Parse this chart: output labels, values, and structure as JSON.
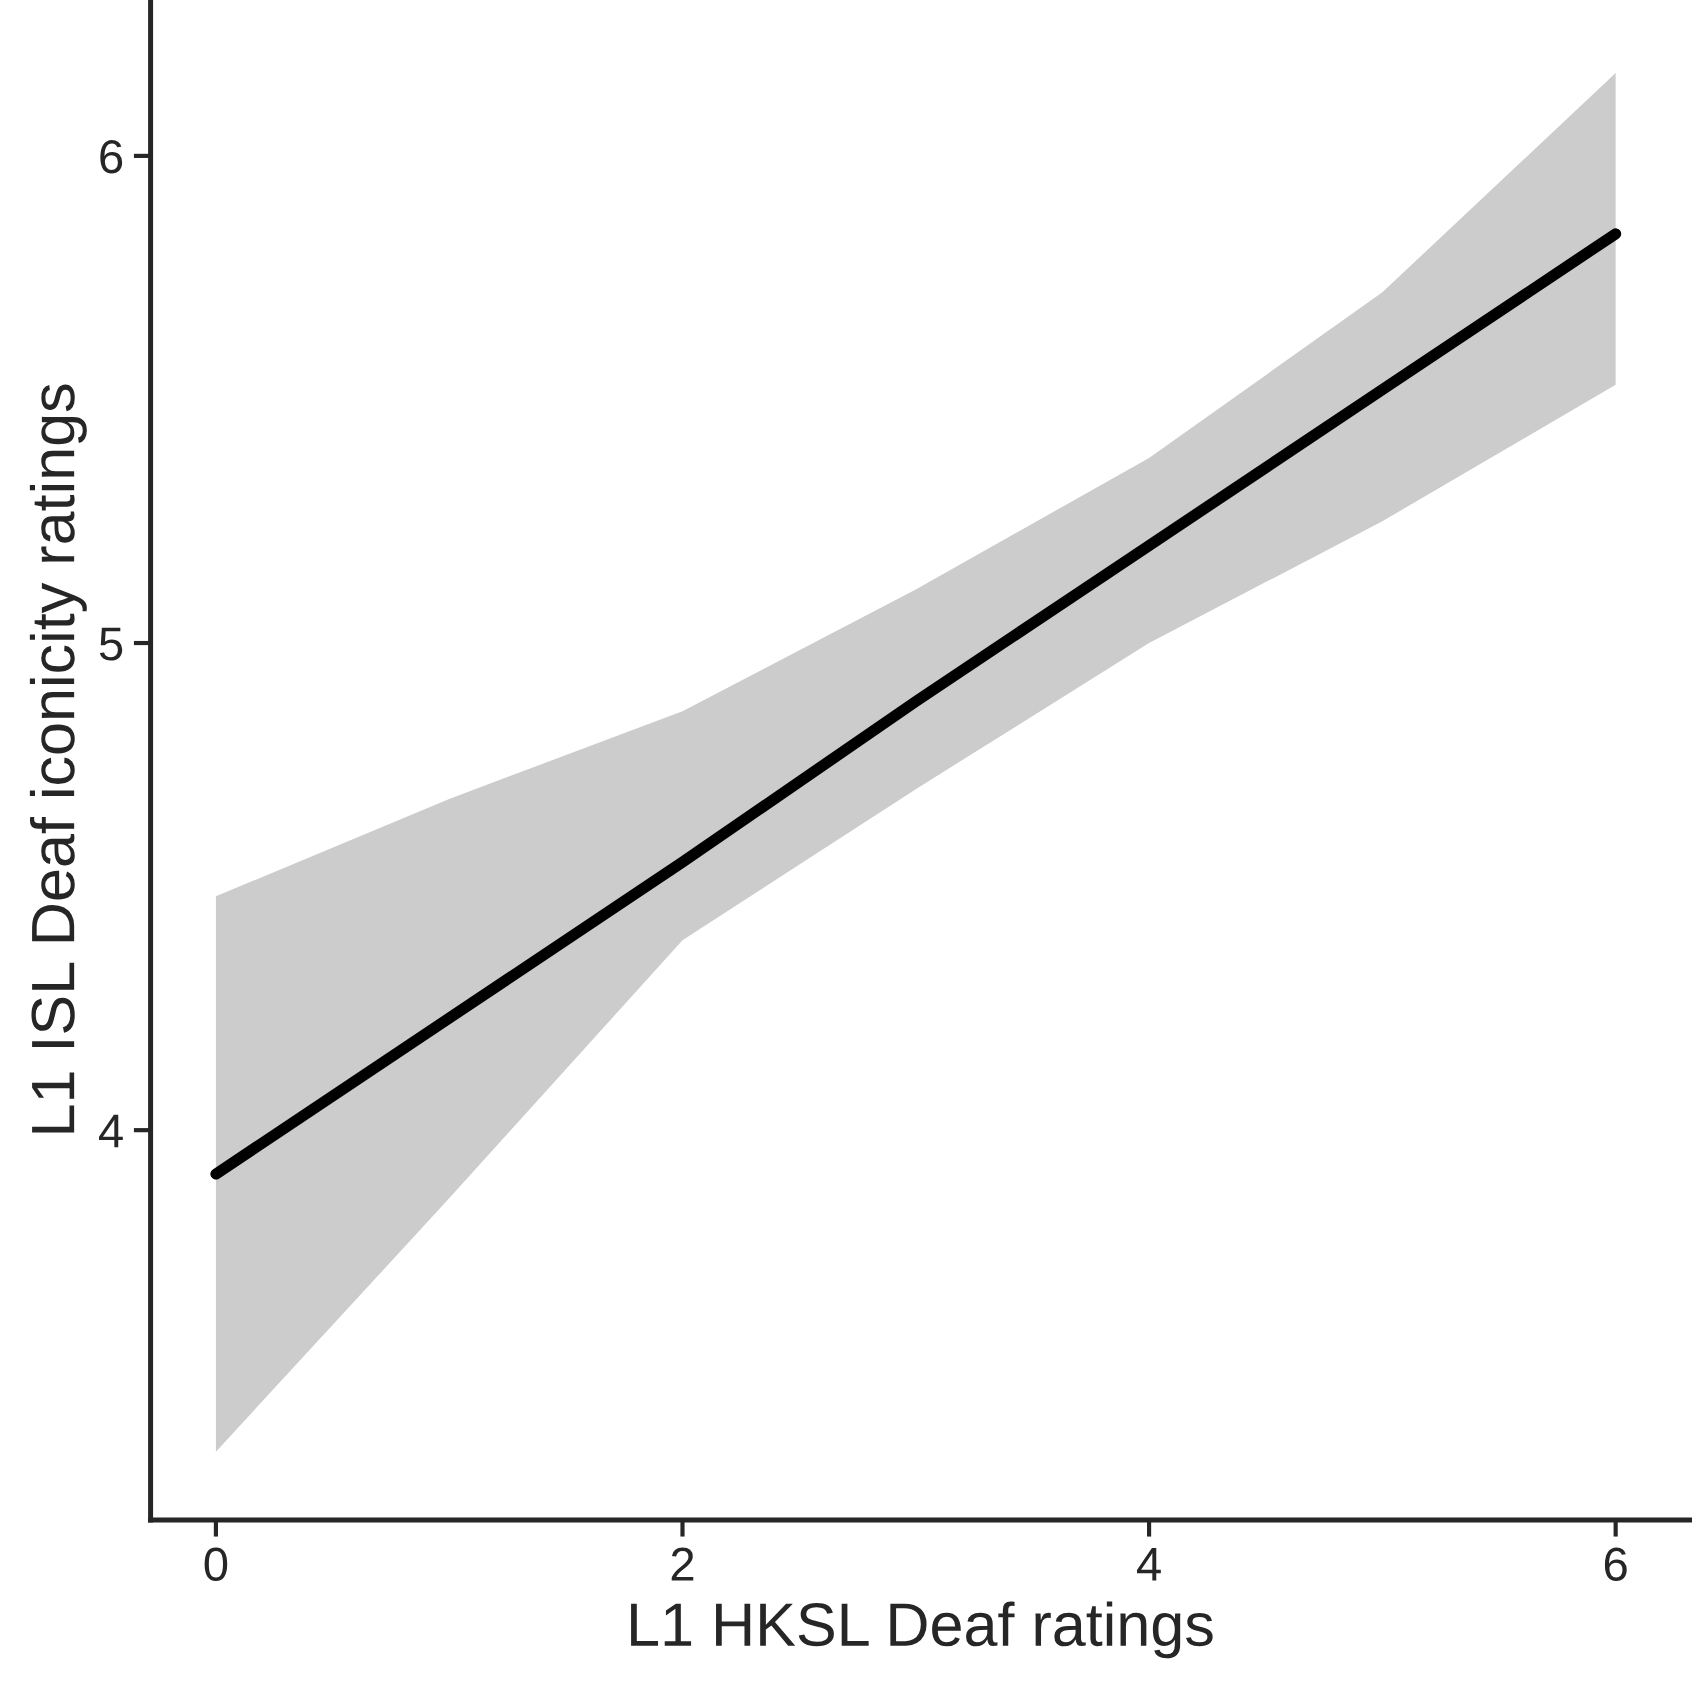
{
  "chart_data": {
    "type": "line",
    "xlabel": "L1 HKSL Deaf ratings",
    "ylabel": "L1 ISL Deaf iconicity ratings",
    "x": [
      0,
      1,
      2,
      3,
      4,
      5,
      6
    ],
    "series": [
      {
        "color": "#000000",
        "values": [
          3.91,
          4.23,
          4.55,
          4.88,
          5.2,
          5.52,
          5.84
        ],
        "lower": [
          3.34,
          3.86,
          4.39,
          4.7,
          5.0,
          5.25,
          5.53
        ],
        "upper": [
          4.48,
          4.68,
          4.86,
          5.11,
          5.38,
          5.72,
          6.17
        ]
      }
    ],
    "xlim": [
      -0.28,
      6.32
    ],
    "ylim": [
      3.2,
      6.32
    ],
    "xticks": [
      0,
      2,
      4,
      6
    ],
    "yticks": [
      4,
      5,
      6
    ],
    "grid": false,
    "legend": false,
    "marker": "none",
    "line_style": "solid"
  }
}
